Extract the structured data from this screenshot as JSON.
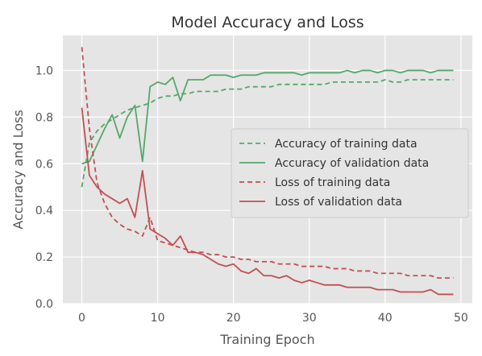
{
  "chart_data": {
    "type": "line",
    "title": "Model Accuracy and Loss",
    "xlabel": "Training Epoch",
    "ylabel": "Accuracy and Loss",
    "xlim": [
      -2.5,
      51.5
    ],
    "ylim": [
      0.0,
      1.15
    ],
    "xticks": [
      "0",
      "10",
      "20",
      "30",
      "40",
      "50"
    ],
    "yticks": [
      "0.0",
      "0.2",
      "0.4",
      "0.6",
      "0.8",
      "1.0"
    ],
    "grid": true,
    "legend_position": "center-right",
    "x": [
      0,
      1,
      2,
      3,
      4,
      5,
      6,
      7,
      8,
      9,
      10,
      11,
      12,
      13,
      14,
      15,
      16,
      17,
      18,
      19,
      20,
      21,
      22,
      23,
      24,
      25,
      26,
      27,
      28,
      29,
      30,
      31,
      32,
      33,
      34,
      35,
      36,
      37,
      38,
      39,
      40,
      41,
      42,
      43,
      44,
      45,
      46,
      47,
      48,
      49
    ],
    "series": [
      {
        "name": "Accuracy of training data",
        "color": "#55a868",
        "style": "dashed",
        "values": [
          0.5,
          0.69,
          0.74,
          0.77,
          0.79,
          0.81,
          0.83,
          0.84,
          0.85,
          0.86,
          0.88,
          0.89,
          0.89,
          0.9,
          0.9,
          0.91,
          0.91,
          0.91,
          0.91,
          0.92,
          0.92,
          0.92,
          0.93,
          0.93,
          0.93,
          0.93,
          0.94,
          0.94,
          0.94,
          0.94,
          0.94,
          0.94,
          0.94,
          0.95,
          0.95,
          0.95,
          0.95,
          0.95,
          0.95,
          0.95,
          0.96,
          0.95,
          0.95,
          0.96,
          0.96,
          0.96,
          0.96,
          0.96,
          0.96,
          0.96
        ]
      },
      {
        "name": "Accuracy of validation data",
        "color": "#55a868",
        "style": "solid",
        "values": [
          0.6,
          0.61,
          0.68,
          0.75,
          0.81,
          0.71,
          0.8,
          0.85,
          0.61,
          0.93,
          0.95,
          0.94,
          0.97,
          0.87,
          0.96,
          0.96,
          0.96,
          0.98,
          0.98,
          0.98,
          0.97,
          0.98,
          0.98,
          0.98,
          0.99,
          0.99,
          0.99,
          0.99,
          0.99,
          0.98,
          0.99,
          0.99,
          0.99,
          0.99,
          0.99,
          1.0,
          0.99,
          1.0,
          1.0,
          0.99,
          1.0,
          1.0,
          0.99,
          1.0,
          1.0,
          1.0,
          0.99,
          1.0,
          1.0,
          1.0
        ]
      },
      {
        "name": "Loss of training data",
        "color": "#c44e52",
        "style": "dashed",
        "values": [
          1.1,
          0.75,
          0.52,
          0.43,
          0.37,
          0.34,
          0.32,
          0.31,
          0.29,
          0.37,
          0.27,
          0.26,
          0.25,
          0.24,
          0.23,
          0.22,
          0.22,
          0.21,
          0.21,
          0.2,
          0.2,
          0.19,
          0.19,
          0.18,
          0.18,
          0.18,
          0.17,
          0.17,
          0.17,
          0.16,
          0.16,
          0.16,
          0.16,
          0.15,
          0.15,
          0.15,
          0.14,
          0.14,
          0.14,
          0.13,
          0.13,
          0.13,
          0.13,
          0.12,
          0.12,
          0.12,
          0.12,
          0.11,
          0.11,
          0.11
        ]
      },
      {
        "name": "Loss of validation data",
        "color": "#c44e52",
        "style": "solid",
        "values": [
          0.84,
          0.55,
          0.5,
          0.47,
          0.45,
          0.43,
          0.45,
          0.37,
          0.57,
          0.32,
          0.3,
          0.28,
          0.25,
          0.29,
          0.22,
          0.22,
          0.21,
          0.19,
          0.17,
          0.16,
          0.17,
          0.14,
          0.13,
          0.15,
          0.12,
          0.12,
          0.11,
          0.12,
          0.1,
          0.09,
          0.1,
          0.09,
          0.08,
          0.08,
          0.08,
          0.07,
          0.07,
          0.07,
          0.07,
          0.06,
          0.06,
          0.06,
          0.05,
          0.05,
          0.05,
          0.05,
          0.06,
          0.04,
          0.04,
          0.04
        ]
      }
    ]
  }
}
